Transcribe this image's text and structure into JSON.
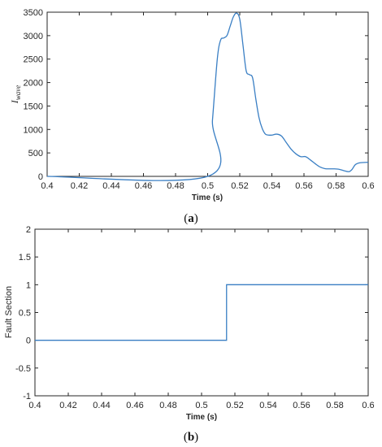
{
  "chart_data": [
    {
      "type": "line",
      "caption": "(a)",
      "xlabel": "Time (s)",
      "ylabel": "I_wave",
      "xlim": [
        0.4,
        0.6
      ],
      "ylim": [
        0,
        3500
      ],
      "xticks": [
        "0.4",
        "0.42",
        "0.44",
        "0.46",
        "0.48",
        "0.5",
        "0.52",
        "0.54",
        "0.56",
        "0.58",
        "0.6"
      ],
      "yticks": [
        "0",
        "500",
        "1000",
        "1500",
        "2000",
        "2500",
        "3000",
        "3500"
      ],
      "grid": false,
      "line_color": "#3a7fc4",
      "x": [
        0.4,
        0.5,
        0.503,
        0.506,
        0.508,
        0.51,
        0.512,
        0.514,
        0.516,
        0.518,
        0.52,
        0.522,
        0.524,
        0.526,
        0.528,
        0.53,
        0.532,
        0.534,
        0.536,
        0.538,
        0.54,
        0.543,
        0.546,
        0.549,
        0.552,
        0.555,
        0.558,
        0.561,
        0.564,
        0.567,
        0.57,
        0.573,
        0.576,
        0.579,
        0.582,
        0.585,
        0.588,
        0.59,
        0.592,
        0.595,
        0.6
      ],
      "y": [
        0,
        0,
        1200,
        2500,
        2900,
        2950,
        3000,
        3200,
        3400,
        3480,
        3350,
        2800,
        2250,
        2170,
        2100,
        1650,
        1250,
        1020,
        900,
        880,
        880,
        900,
        860,
        720,
        580,
        480,
        420,
        420,
        350,
        270,
        200,
        165,
        160,
        160,
        150,
        120,
        100,
        150,
        250,
        290,
        300
      ]
    },
    {
      "type": "line",
      "caption": "(b)",
      "xlabel": "Time (s)",
      "ylabel": "Fault Section",
      "xlim": [
        0.4,
        0.6
      ],
      "ylim": [
        -1,
        2
      ],
      "xticks": [
        "0.4",
        "0.42",
        "0.44",
        "0.46",
        "0.48",
        "0.5",
        "0.52",
        "0.54",
        "0.56",
        "0.58",
        "0.6"
      ],
      "yticks": [
        "-1",
        "-0.5",
        "0",
        "0.5",
        "1",
        "1.5",
        "2"
      ],
      "grid": false,
      "line_color": "#3a7fc4",
      "x": [
        0.4,
        0.515,
        0.515,
        0.6
      ],
      "y": [
        0,
        0,
        1,
        1
      ]
    }
  ]
}
